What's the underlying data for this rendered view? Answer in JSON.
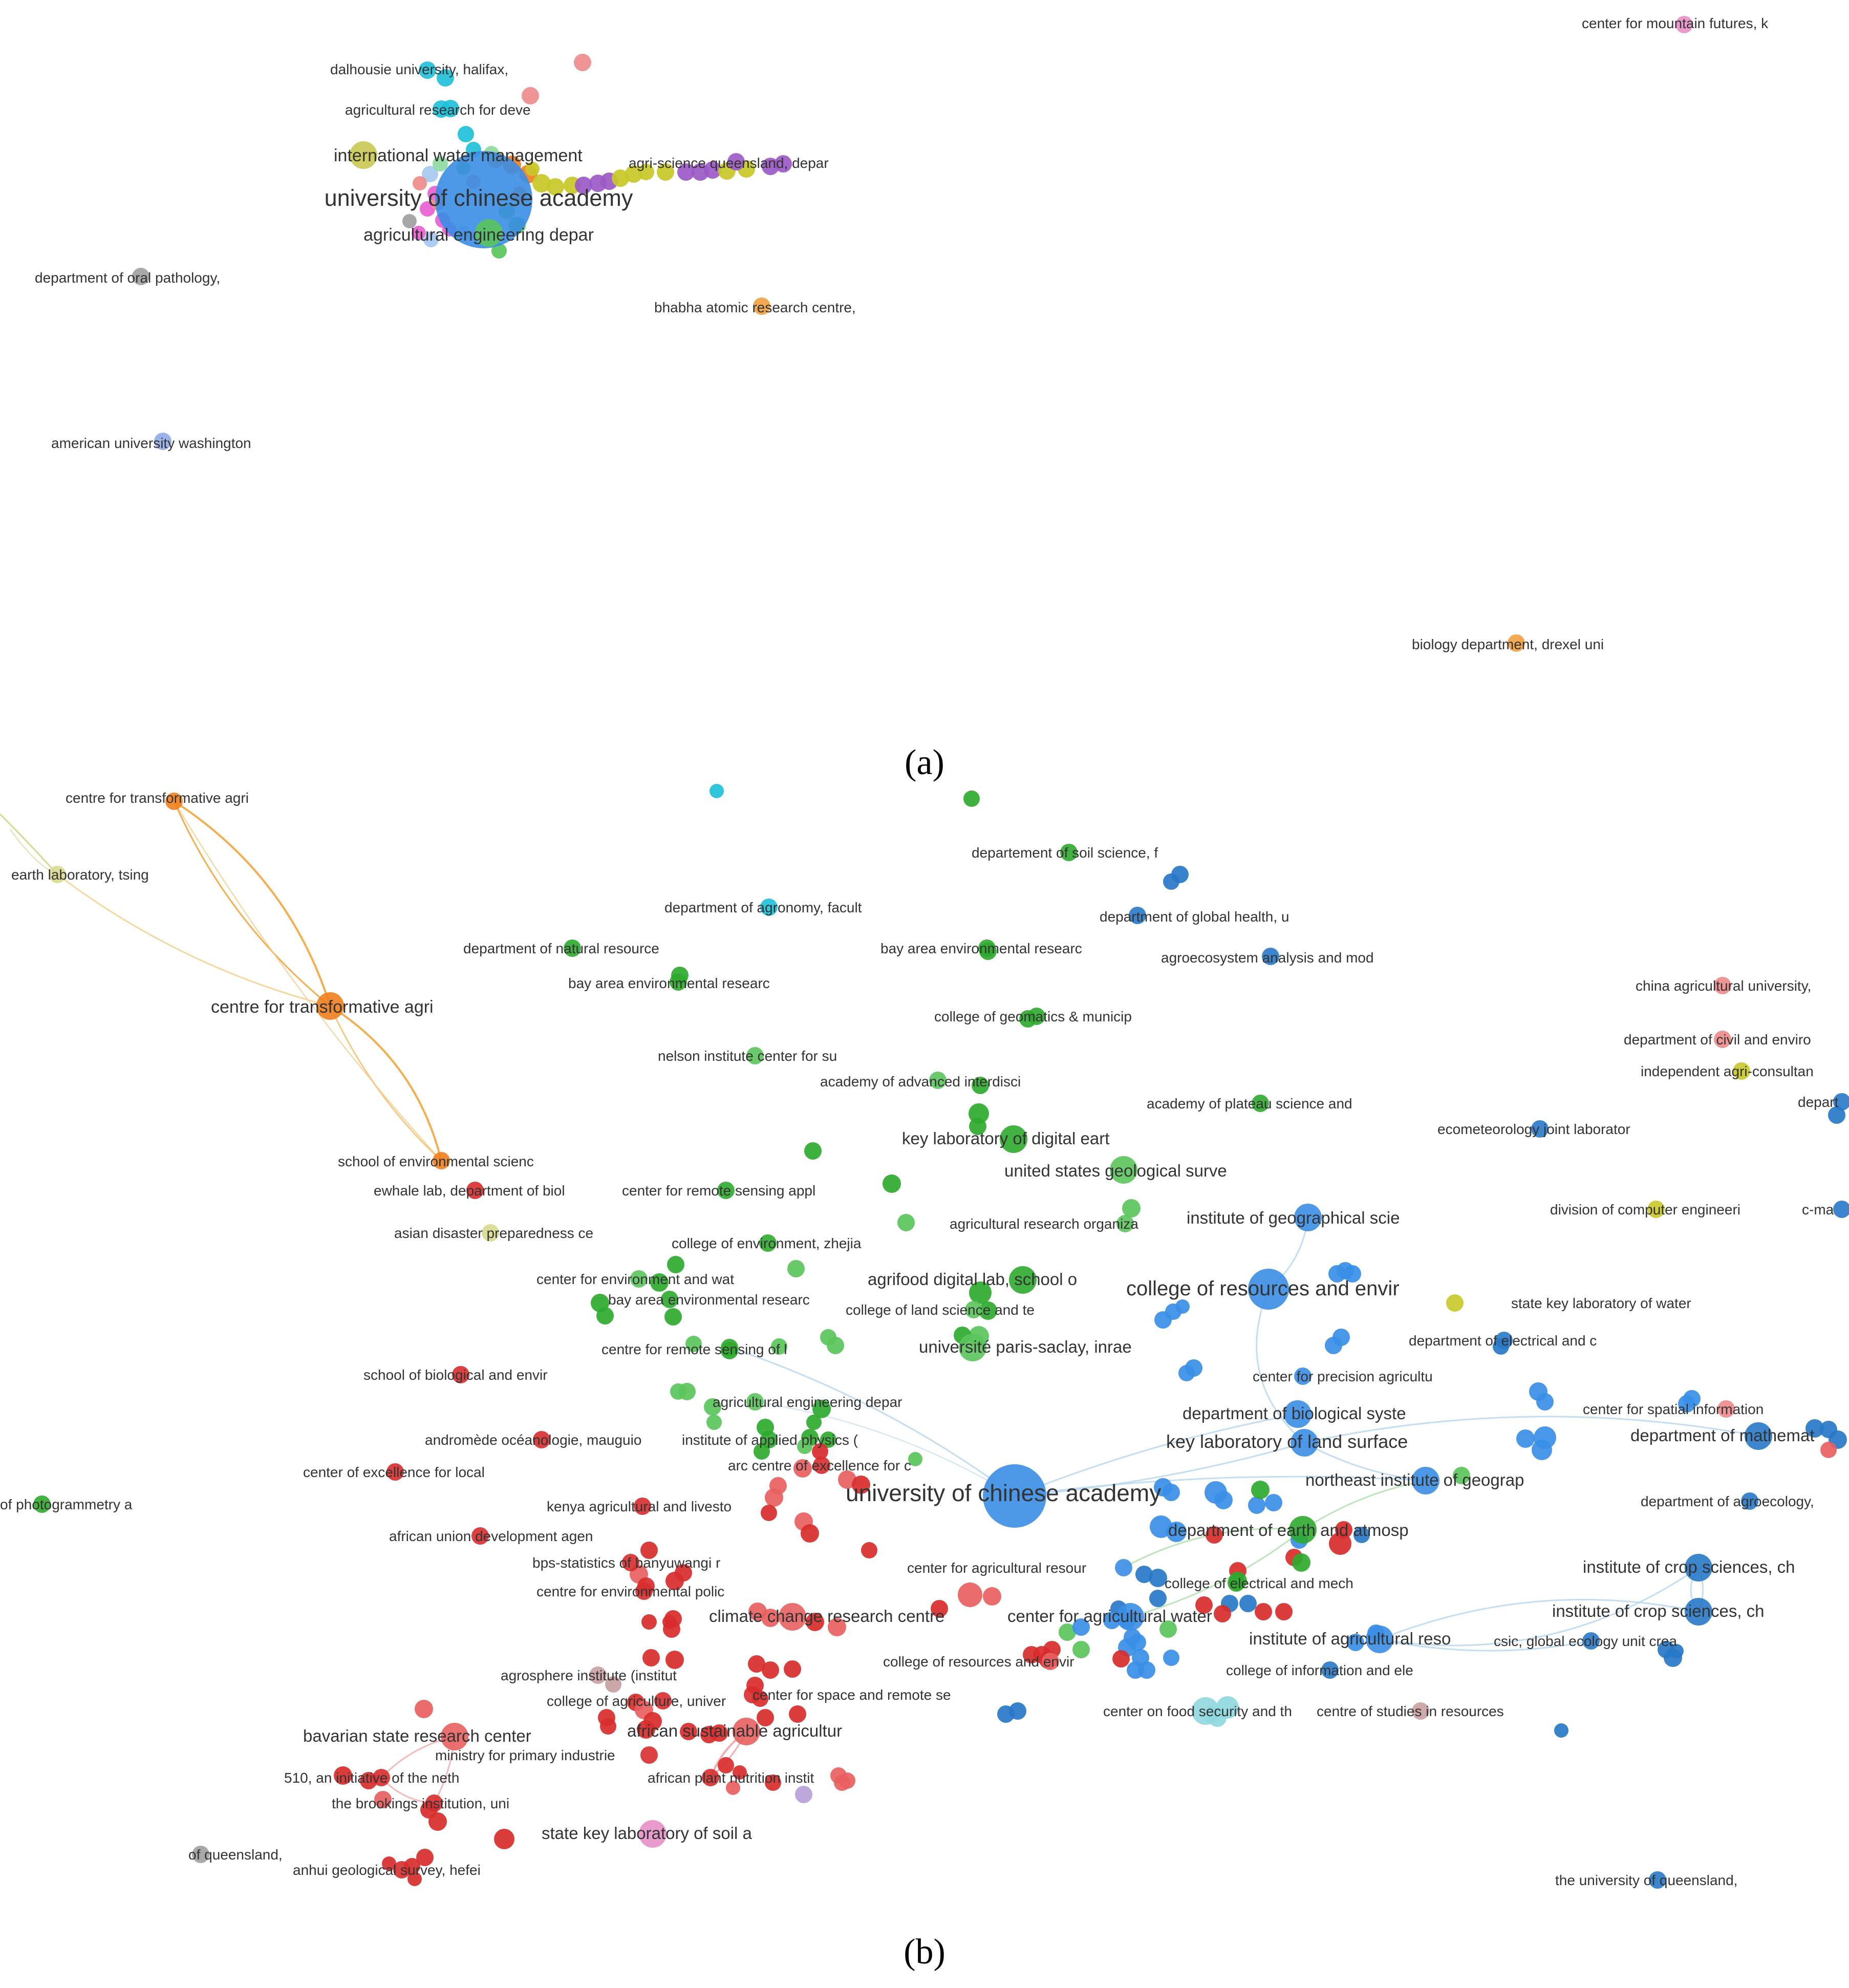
{
  "panels": [
    {
      "label": "(a)",
      "nodes": [
        {
          "text": "center for mountain futures, k",
          "color": "#e890c8",
          "weight": 1
        },
        {
          "text": "dalhousie university, halifax,",
          "color": "#1ec0d8",
          "weight": 1
        },
        {
          "text": "",
          "color": "#ee8a8a",
          "weight": 1
        },
        {
          "text": "agricultural research for deve",
          "color": "#1ec0d8",
          "weight": 1
        },
        {
          "text": "",
          "color": "#ee8a8a",
          "weight": 1
        },
        {
          "text": "international water management",
          "color": "#c8c850",
          "weight": 2
        },
        {
          "text": "agri-science queensland, depar",
          "color": "#9b59c6",
          "weight": 1
        },
        {
          "text": "university of chinese academy",
          "color": "#3a8ee6",
          "weight": 5
        },
        {
          "text": "agricultural engineering depar",
          "color": "#5bc45b",
          "weight": 2
        },
        {
          "text": "department of oral pathology,",
          "color": "#a0a0a0",
          "weight": 1
        },
        {
          "text": "bhabha atomic research centre,",
          "color": "#f0a040",
          "weight": 1
        },
        {
          "text": "american university washington",
          "color": "#90a8e8",
          "weight": 1
        },
        {
          "text": "biology department, drexel uni",
          "color": "#f0a040",
          "weight": 1
        }
      ],
      "cluster_colors": [
        "#1ec0d8",
        "#f07f1e",
        "#c8c828",
        "#9b59c6",
        "#e85fd0",
        "#3a8ee6",
        "#5bc45b",
        "#a0a0a0",
        "#ee8a8a",
        "#a6c8f0",
        "#8fd9a0"
      ]
    },
    {
      "label": "(b)",
      "nodes": [
        {
          "text": "centre for transformative agri",
          "color": "#f07f1e",
          "weight": 1
        },
        {
          "text": "earth laboratory, tsing",
          "color": "#d8d890",
          "weight": 1
        },
        {
          "text": "centre for transformative agri",
          "color": "#f07f1e",
          "weight": 2
        },
        {
          "text": "school of environmental scienc",
          "color": "#f07f1e",
          "weight": 1
        },
        {
          "text": "departement of soil science, f",
          "color": "#2eaa2e",
          "weight": 1
        },
        {
          "text": "department of agronomy, facult",
          "color": "#1ec0d8",
          "weight": 1
        },
        {
          "text": "department of global health, u",
          "color": "#2878c8",
          "weight": 1
        },
        {
          "text": "department of natural resource",
          "color": "#2eaa2e",
          "weight": 1
        },
        {
          "text": "bay area environmental researc",
          "color": "#2eaa2e",
          "weight": 1
        },
        {
          "text": "agroecosystem analysis and mod",
          "color": "#2878c8",
          "weight": 1
        },
        {
          "text": "bay area environmental researc",
          "color": "#2eaa2e",
          "weight": 1
        },
        {
          "text": "china agricultural university,",
          "color": "#ee8a8a",
          "weight": 1
        },
        {
          "text": "college of geomatics & municip",
          "color": "#2eaa2e",
          "weight": 1
        },
        {
          "text": "department of civil and enviro",
          "color": "#ee8a8a",
          "weight": 1
        },
        {
          "text": "nelson institute center for su",
          "color": "#5bc45b",
          "weight": 1
        },
        {
          "text": "independent agri-consultan",
          "color": "#c8c828",
          "weight": 1
        },
        {
          "text": "academy of advanced interdisci",
          "color": "#5bc45b",
          "weight": 1
        },
        {
          "text": "academy of plateau science and",
          "color": "#2eaa2e",
          "weight": 1
        },
        {
          "text": "depart",
          "color": "#2878c8",
          "weight": 1
        },
        {
          "text": "ecometeorology joint laborator",
          "color": "#2878c8",
          "weight": 1
        },
        {
          "text": "key laboratory of digital eart",
          "color": "#2eaa2e",
          "weight": 2
        },
        {
          "text": "united states geological surve",
          "color": "#5bc45b",
          "weight": 2
        },
        {
          "text": "ewhale lab, department of biol",
          "color": "#d82c2c",
          "weight": 1
        },
        {
          "text": "center for remote sensing appl",
          "color": "#2eaa2e",
          "weight": 1
        },
        {
          "text": "asian disaster preparedness ce",
          "color": "#d8d890",
          "weight": 1
        },
        {
          "text": "agricultural research organiza",
          "color": "#5bc45b",
          "weight": 1
        },
        {
          "text": "institute of geographical scie",
          "color": "#3a8ee6",
          "weight": 2
        },
        {
          "text": "division of computer engineeri",
          "color": "#c8c828",
          "weight": 1
        },
        {
          "text": "c-ma",
          "color": "#2878c8",
          "weight": 1
        },
        {
          "text": "college of environment, zhejia",
          "color": "#2eaa2e",
          "weight": 1
        },
        {
          "text": "center for environment and wat",
          "color": "#5bc45b",
          "weight": 1
        },
        {
          "text": "agrifood digital lab, school o",
          "color": "#2eaa2e",
          "weight": 2
        },
        {
          "text": "bay area environmental researc",
          "color": "#2eaa2e",
          "weight": 1
        },
        {
          "text": "college of land science and te",
          "color": "#5bc45b",
          "weight": 1
        },
        {
          "text": "college of resources and envir",
          "color": "#3a8ee6",
          "weight": 3
        },
        {
          "text": "state key laboratory of water",
          "color": "#c8c828",
          "weight": 1
        },
        {
          "text": "centre for remote sensing of l",
          "color": "#2eaa2e",
          "weight": 1
        },
        {
          "text": "université paris-saclay, inrae",
          "color": "#5bc45b",
          "weight": 2
        },
        {
          "text": "department of electrical and c",
          "color": "#2878c8",
          "weight": 1
        },
        {
          "text": "school of biological and envir",
          "color": "#d82c2c",
          "weight": 1
        },
        {
          "text": "center for precision agricultu",
          "color": "#3a8ee6",
          "weight": 1
        },
        {
          "text": "agricultural engineering depar",
          "color": "#5bc45b",
          "weight": 1
        },
        {
          "text": "center for spatial information",
          "color": "#ee8a8a",
          "weight": 1
        },
        {
          "text": "department of biological syste",
          "color": "#3a8ee6",
          "weight": 2
        },
        {
          "text": "andromède océanologie, mauguio",
          "color": "#d82c2c",
          "weight": 1
        },
        {
          "text": "institute of applied physics (",
          "color": "#2eaa2e",
          "weight": 1
        },
        {
          "text": "key laboratory of land surface",
          "color": "#3a8ee6",
          "weight": 2
        },
        {
          "text": "department of mathemat",
          "color": "#2878c8",
          "weight": 2
        },
        {
          "text": "center of excellence for local",
          "color": "#d82c2c",
          "weight": 1
        },
        {
          "text": "arc centre of excellence for c",
          "color": "#d82c2c",
          "weight": 1
        },
        {
          "text": "university of chinese academy",
          "color": "#3a8ee6",
          "weight": 4
        },
        {
          "text": "northeast institute of geograp",
          "color": "#3a8ee6",
          "weight": 2
        },
        {
          "text": "of photogrammetry a",
          "color": "#2eaa2e",
          "weight": 1
        },
        {
          "text": "kenya agricultural and livesto",
          "color": "#d82c2c",
          "weight": 1
        },
        {
          "text": "department of agroecology,",
          "color": "#2878c8",
          "weight": 1
        },
        {
          "text": "african union development agen",
          "color": "#d82c2c",
          "weight": 1
        },
        {
          "text": "department of earth and atmosp",
          "color": "#2eaa2e",
          "weight": 2
        },
        {
          "text": "bps-statistics of banyuwangi r",
          "color": "#d82c2c",
          "weight": 1
        },
        {
          "text": "center for agricultural resour",
          "color": "#3a8ee6",
          "weight": 1
        },
        {
          "text": "college of electrical and mech",
          "color": "#2eaa2e",
          "weight": 1
        },
        {
          "text": "institute of crop sciences, ch",
          "color": "#2878c8",
          "weight": 2
        },
        {
          "text": "centre for environmental polic",
          "color": "#d82c2c",
          "weight": 1
        },
        {
          "text": "climate change research centre",
          "color": "#e86060",
          "weight": 2
        },
        {
          "text": "center for agricultural water",
          "color": "#3a8ee6",
          "weight": 2
        },
        {
          "text": "institute of agricultural reso",
          "color": "#3a8ee6",
          "weight": 2
        },
        {
          "text": "institute of crop sciences, ch",
          "color": "#2878c8",
          "weight": 2
        },
        {
          "text": "csic, global ecology unit crea",
          "color": "#2878c8",
          "weight": 1
        },
        {
          "text": "college of resources and envir",
          "color": "#e86060",
          "weight": 1
        },
        {
          "text": "college of information and ele",
          "color": "#2878c8",
          "weight": 1
        },
        {
          "text": "agrosphere institute (institut",
          "color": "#c8a0a0",
          "weight": 1
        },
        {
          "text": "college of agriculture, univer",
          "color": "#d82c2c",
          "weight": 1
        },
        {
          "text": "center for space and remote se",
          "color": "#d82c2c",
          "weight": 1
        },
        {
          "text": "center on food security and th",
          "color": "#90d8e0",
          "weight": 2
        },
        {
          "text": "centre of studies in resources",
          "color": "#c8a0a0",
          "weight": 1
        },
        {
          "text": "bavarian state research center",
          "color": "#e86060",
          "weight": 2
        },
        {
          "text": "african sustainable agricultur",
          "color": "#e86060",
          "weight": 2
        },
        {
          "text": "ministry for primary industrie",
          "color": "#d82c2c",
          "weight": 1
        },
        {
          "text": "510, an initiative of the neth",
          "color": "#d82c2c",
          "weight": 1
        },
        {
          "text": "african plant nutrition instit",
          "color": "#d82c2c",
          "weight": 1
        },
        {
          "text": "the brookings institution, uni",
          "color": "#d82c2c",
          "weight": 1
        },
        {
          "text": "state key laboratory of soil a",
          "color": "#e890c8",
          "weight": 2
        },
        {
          "text": "of queensland,",
          "color": "#a0a0a0",
          "weight": 1
        },
        {
          "text": "anhui geological survey, hefei",
          "color": "#d82c2c",
          "weight": 1
        },
        {
          "text": "the university of queensland,",
          "color": "#2878c8",
          "weight": 1
        }
      ],
      "cluster_colors": [
        "#d82c2c",
        "#e86060",
        "#2eaa2e",
        "#5bc45b",
        "#2878c8",
        "#3a8ee6",
        "#f07f1e",
        "#c8c828",
        "#1ec0d8",
        "#e890c8",
        "#a0a0a0",
        "#d8d890",
        "#b8a0d8"
      ]
    }
  ]
}
